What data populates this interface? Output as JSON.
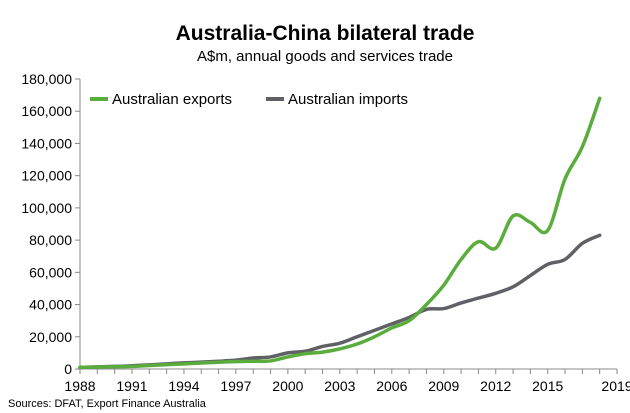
{
  "chart_data": {
    "type": "line",
    "title": "Australia-China bilateral trade",
    "subtitle": "A$m, annual goods and services trade",
    "source": "Sources: DFAT, Export Finance Australia",
    "xlabel": "",
    "ylabel": "",
    "xlim": [
      1988,
      2019
    ],
    "ylim": [
      0,
      180000
    ],
    "x_ticks": [
      "1988",
      "1991",
      "1994",
      "1997",
      "2000",
      "2003",
      "2006",
      "2009",
      "2012",
      "2015",
      "2019"
    ],
    "y_ticks": [
      "0",
      "20,000",
      "40,000",
      "60,000",
      "80,000",
      "100,000",
      "120,000",
      "140,000",
      "160,000",
      "180,000"
    ],
    "grid": false,
    "legend_position": "top-left",
    "x": [
      1988,
      1989,
      1990,
      1991,
      1992,
      1993,
      1994,
      1995,
      1996,
      1997,
      1998,
      1999,
      2000,
      2001,
      2002,
      2003,
      2004,
      2005,
      2006,
      2007,
      2008,
      2009,
      2010,
      2011,
      2012,
      2013,
      2014,
      2015,
      2016,
      2017,
      2018,
      2019
    ],
    "series": [
      {
        "name": "Australian exports",
        "color": "#5aac3d",
        "values": [
          1000,
          1200,
          1400,
          1600,
          2200,
          2700,
          3200,
          3700,
          4200,
          4600,
          4800,
          5000,
          7500,
          9500,
          10500,
          12500,
          15500,
          20000,
          25500,
          30000,
          40000,
          52000,
          68000,
          79000,
          75000,
          95000,
          91000,
          86000,
          118000,
          138000,
          168000,
          null
        ]
      },
      {
        "name": "Australian imports",
        "color": "#5f6166",
        "values": [
          1000,
          1300,
          1600,
          2000,
          2600,
          3200,
          3800,
          4300,
          4800,
          5500,
          6800,
          7500,
          10000,
          11000,
          14000,
          16000,
          20000,
          24000,
          28000,
          32000,
          37000,
          37500,
          41000,
          44000,
          47000,
          51000,
          58000,
          65000,
          68000,
          78000,
          83000,
          null
        ]
      }
    ]
  }
}
